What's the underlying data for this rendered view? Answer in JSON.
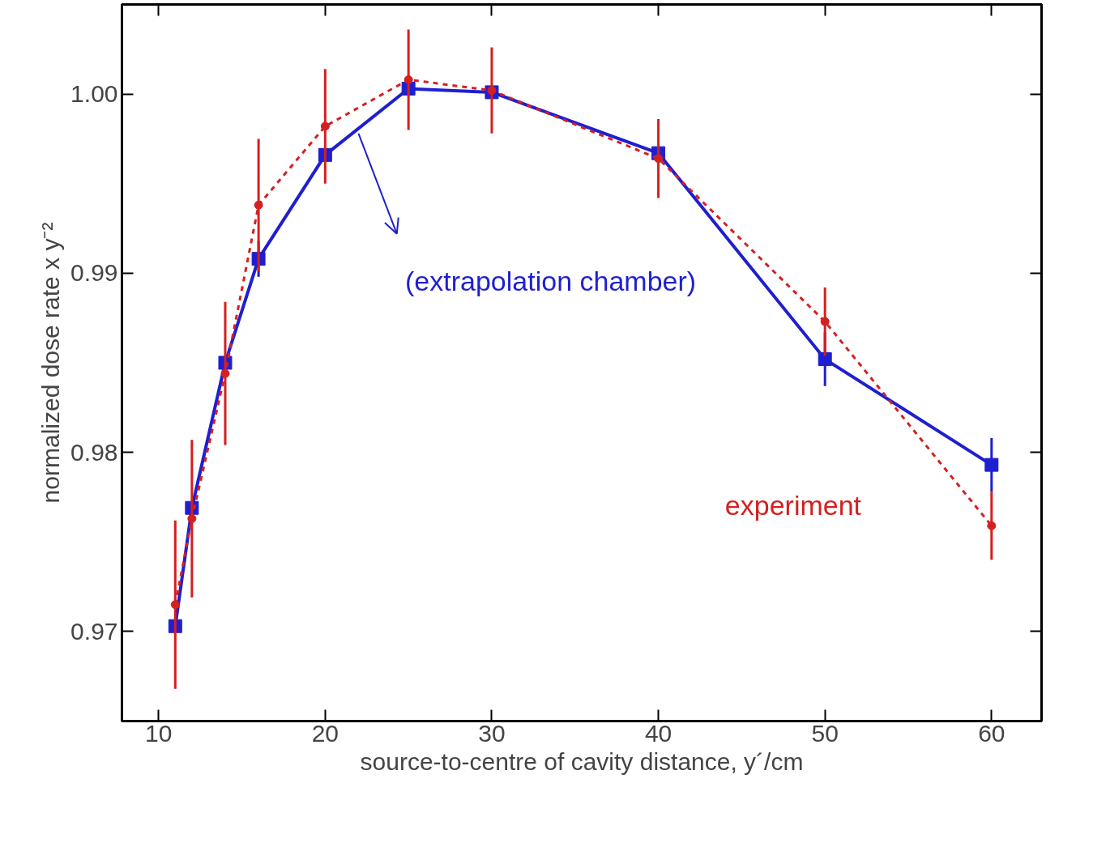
{
  "chart_data": {
    "type": "line",
    "xlabel": "source-to-centre of cavity distance, y´/cm",
    "ylabel": "normalized dose rate x y⁻²",
    "x": [
      11,
      12,
      14,
      16,
      20,
      25,
      30,
      40,
      50,
      60
    ],
    "xlim": [
      7.8,
      63
    ],
    "xticks": [
      10,
      20,
      30,
      40,
      50,
      60
    ],
    "ylim": [
      0.965,
      1.005
    ],
    "yticks": [
      0.97,
      0.98,
      0.99,
      {
        "value": 1.0,
        "label": "1.00"
      }
    ],
    "grid": false,
    "series": [
      {
        "name": "(extrapolation chamber)",
        "color": "#1f1fd0",
        "marker": "square",
        "line_style": "solid",
        "values": [
          0.9703,
          0.9769,
          0.985,
          0.9908,
          0.9966,
          1.0003,
          1.0001,
          0.9967,
          0.9852,
          0.9793
        ],
        "errors": [
          null,
          null,
          null,
          0.001,
          null,
          null,
          null,
          null,
          0.0015,
          0.0015
        ]
      },
      {
        "name": "experiment",
        "color": "#d42020",
        "marker": "circle",
        "line_style": "dashed",
        "values": [
          0.9715,
          0.9763,
          0.9844,
          0.9938,
          0.9982,
          1.0008,
          1.0002,
          0.9964,
          0.9873,
          0.9759
        ],
        "errors": [
          0.0047,
          0.0044,
          0.004,
          0.0037,
          0.0032,
          0.0028,
          0.0024,
          0.0022,
          0.0019,
          0.0019
        ]
      }
    ]
  }
}
